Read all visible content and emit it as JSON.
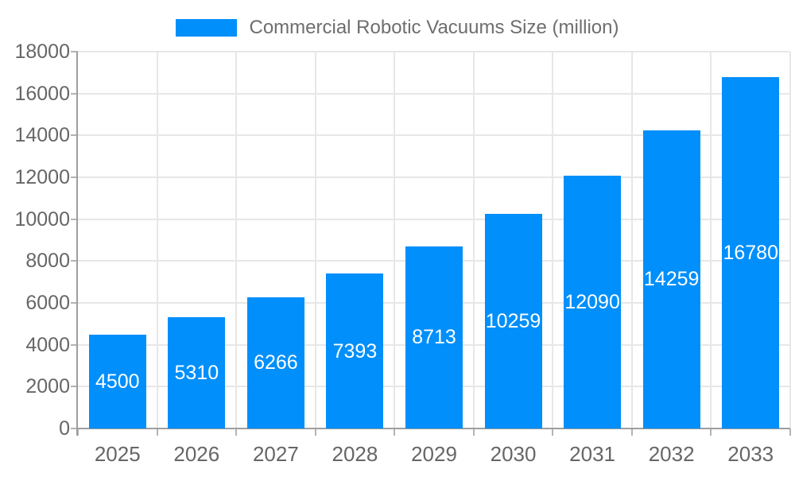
{
  "legend": {
    "label": "Commercial Robotic Vacuums Size (million)",
    "swatch_color": "#008FFB"
  },
  "chart_data": {
    "type": "bar",
    "title": "Commercial Robotic Vacuums Size (million)",
    "categories": [
      "2025",
      "2026",
      "2027",
      "2028",
      "2029",
      "2030",
      "2031",
      "2032",
      "2033"
    ],
    "values": [
      4500,
      5310,
      6266,
      7393,
      8713,
      10259,
      12090,
      14259,
      16780
    ],
    "xlabel": "",
    "ylabel": "",
    "ylim": [
      0,
      18000
    ],
    "ytick_step": 2000,
    "ytick_labels": [
      "0",
      "2000",
      "4000",
      "6000",
      "8000",
      "10000",
      "12000",
      "14000",
      "16000",
      "18000"
    ],
    "grid": true,
    "legend_position": "top",
    "bar_color": "#008FFB",
    "data_label_color": "#ffffff",
    "axis_text_color": "#666666",
    "grid_color": "#e7e7e7",
    "axis_line_color": "#9e9e9e"
  }
}
